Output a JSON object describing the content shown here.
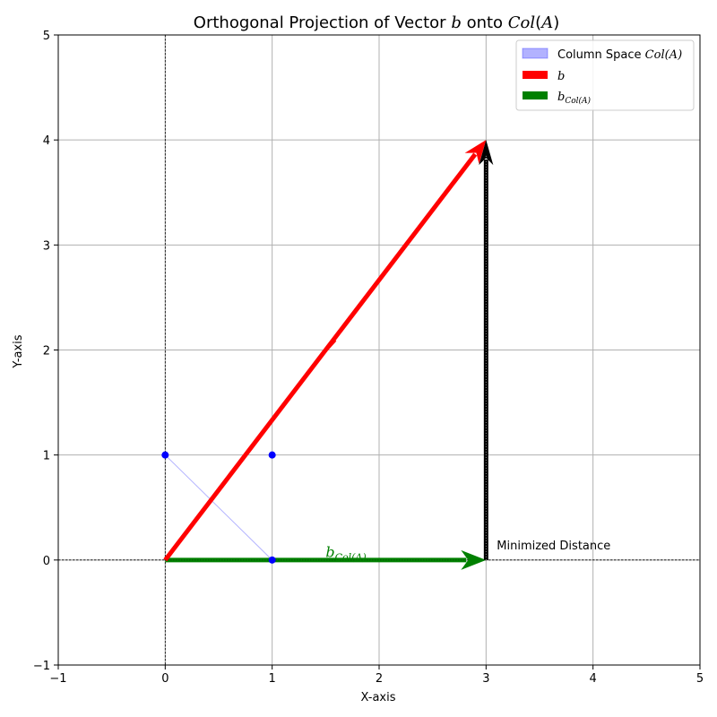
{
  "chart_data": {
    "type": "vector-plot",
    "title": {
      "prefix": "Orthogonal Projection of Vector ",
      "b": "b",
      "onto": " onto ",
      "col": "Col",
      "A_open": "(",
      "A": "A",
      "A_close": ")"
    },
    "xlabel": "X-axis",
    "ylabel": "Y-axis",
    "xlim": [
      -1,
      5
    ],
    "ylim": [
      -1,
      5
    ],
    "xticks": [
      -1,
      0,
      1,
      2,
      3,
      4,
      5
    ],
    "yticks": [
      -1,
      0,
      1,
      2,
      3,
      4,
      5
    ],
    "xtick_labels": [
      "−1",
      "0",
      "1",
      "2",
      "3",
      "4",
      "5"
    ],
    "ytick_labels": [
      "−1",
      "0",
      "1",
      "2",
      "3",
      "4",
      "5"
    ],
    "grid": true,
    "column_space": {
      "color": "#0000ff",
      "points": [
        [
          0,
          1
        ],
        [
          1,
          0
        ],
        [
          1,
          1
        ]
      ],
      "line": [
        [
          0,
          1
        ],
        [
          1,
          0
        ]
      ]
    },
    "vectors": [
      {
        "name": "b",
        "from": [
          0,
          0
        ],
        "to": [
          3,
          4
        ],
        "color": "#ff0000"
      },
      {
        "name": "b_col",
        "from": [
          0,
          0
        ],
        "to": [
          3,
          0
        ],
        "color": "#008000"
      },
      {
        "name": "residual",
        "from": [
          3,
          0
        ],
        "to": [
          3,
          4
        ],
        "color": "#000000"
      }
    ],
    "stray_arrowhead": {
      "at": [
        1.55,
        2.05
      ],
      "color": "#ff0000"
    },
    "annotations": {
      "minimized_distance": {
        "text": "Minimized Distance",
        "at": [
          3.1,
          0.1
        ]
      },
      "b_col_label": {
        "main": "b",
        "sub": "Col(A)",
        "at": [
          1.5,
          0.03
        ],
        "color": "#008000"
      }
    },
    "legend": {
      "position": "upper right",
      "entries": [
        {
          "type": "patch",
          "color": "#0000ff",
          "label_prefix": "Column Space ",
          "label_math": "Col(A)"
        },
        {
          "type": "bar",
          "color": "#ff0000",
          "label_math": "b"
        },
        {
          "type": "bar",
          "color": "#008000",
          "label_main": "b",
          "label_sub": "Col(A)"
        }
      ]
    }
  }
}
